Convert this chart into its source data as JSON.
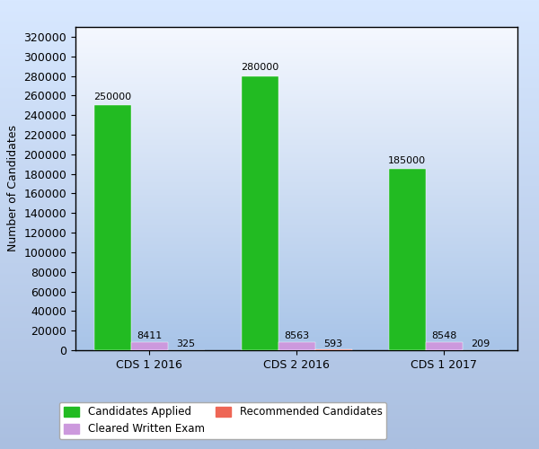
{
  "categories": [
    "CDS 1 2016",
    "CDS 2 2016",
    "CDS 1 2017"
  ],
  "series": {
    "Candidates Applied": [
      250000,
      280000,
      185000
    ],
    "Cleared Written Exam": [
      8411,
      8563,
      8548
    ],
    "Recommended Candidates": [
      325,
      593,
      209
    ]
  },
  "colors": {
    "Candidates Applied": "#22BB22",
    "Cleared Written Exam": "#CC99DD",
    "Recommended Candidates": "#EE6655"
  },
  "ylabel": "Number of Candidates",
  "ylim": [
    0,
    330000
  ],
  "yticks": [
    0,
    20000,
    40000,
    60000,
    80000,
    100000,
    120000,
    140000,
    160000,
    180000,
    200000,
    220000,
    240000,
    260000,
    280000,
    300000,
    320000
  ],
  "bg_outer": "#AABFE0",
  "bg_top": "#B8D0EE",
  "bg_bottom": "#E8F0FF",
  "bar_width": 0.25,
  "label_fontsize": 9,
  "tick_fontsize": 9,
  "legend_order": [
    "Candidates Applied",
    "Cleared Written Exam",
    "Recommended Candidates"
  ]
}
